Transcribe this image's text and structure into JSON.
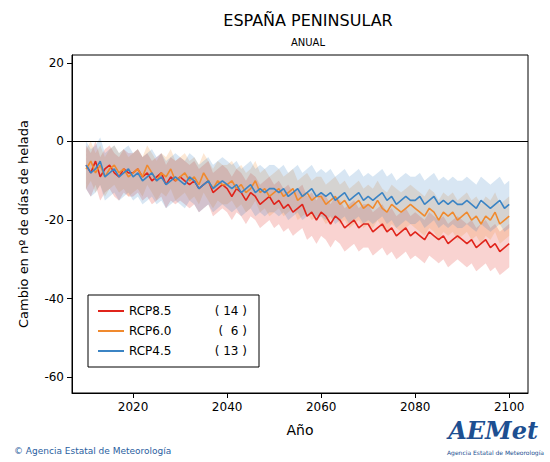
{
  "chart_data": {
    "type": "line",
    "title": "ESPAÑA PENINSULAR",
    "subtitle": "ANUAL",
    "x_label": "Año",
    "y_label": "Cambio en nº de días de helada",
    "x": [
      2010,
      2011,
      2012,
      2013,
      2014,
      2015,
      2016,
      2017,
      2018,
      2019,
      2020,
      2021,
      2022,
      2023,
      2024,
      2025,
      2026,
      2027,
      2028,
      2029,
      2030,
      2031,
      2032,
      2033,
      2034,
      2035,
      2036,
      2037,
      2038,
      2039,
      2040,
      2041,
      2042,
      2043,
      2044,
      2045,
      2046,
      2047,
      2048,
      2049,
      2050,
      2051,
      2052,
      2053,
      2054,
      2055,
      2056,
      2057,
      2058,
      2059,
      2060,
      2061,
      2062,
      2063,
      2064,
      2065,
      2066,
      2067,
      2068,
      2069,
      2070,
      2071,
      2072,
      2073,
      2074,
      2075,
      2076,
      2077,
      2078,
      2079,
      2080,
      2081,
      2082,
      2083,
      2084,
      2085,
      2086,
      2087,
      2088,
      2089,
      2090,
      2091,
      2092,
      2093,
      2094,
      2095,
      2096,
      2097,
      2098,
      2099,
      2100
    ],
    "xlim": [
      2007,
      2104
    ],
    "xticks": [
      2020,
      2040,
      2060,
      2080,
      2100
    ],
    "ylim": [
      -64,
      22
    ],
    "yticks": [
      -60,
      -40,
      -20,
      0,
      20
    ],
    "reference_line": 0,
    "legend": "lower left",
    "series": [
      {
        "name": "RCP8.5",
        "legend_note": "( 14 )",
        "color": "#e0241b",
        "values": [
          -6,
          -8,
          -5,
          -9,
          -7,
          -6,
          -8,
          -9,
          -7,
          -8,
          -8,
          -7,
          -9,
          -8,
          -10,
          -9,
          -8,
          -11,
          -9,
          -10,
          -9,
          -10,
          -11,
          -10,
          -12,
          -11,
          -10,
          -13,
          -12,
          -11,
          -12,
          -14,
          -12,
          -13,
          -15,
          -13,
          -14,
          -16,
          -15,
          -14,
          -16,
          -15,
          -17,
          -16,
          -18,
          -17,
          -16,
          -19,
          -18,
          -20,
          -18,
          -19,
          -21,
          -19,
          -20,
          -22,
          -21,
          -20,
          -22,
          -21,
          -21,
          -23,
          -22,
          -21,
          -23,
          -22,
          -24,
          -23,
          -22,
          -24,
          -23,
          -24,
          -25,
          -23,
          -24,
          -25,
          -24,
          -26,
          -25,
          -24,
          -25,
          -26,
          -25,
          -27,
          -26,
          -25,
          -27,
          -26,
          -28,
          -27,
          -26
        ],
        "lower": [
          -12,
          -14,
          -11,
          -15,
          -13,
          -12,
          -14,
          -15,
          -13,
          -14,
          -14,
          -13,
          -15,
          -14,
          -16,
          -15,
          -14,
          -17,
          -15,
          -16,
          -15,
          -16,
          -17,
          -16,
          -18,
          -17,
          -16,
          -19,
          -18,
          -17,
          -18,
          -20,
          -18,
          -19,
          -21,
          -19,
          -20,
          -22,
          -21,
          -20,
          -22,
          -21,
          -23,
          -22,
          -24,
          -23,
          -22,
          -25,
          -24,
          -26,
          -24,
          -25,
          -27,
          -25,
          -26,
          -28,
          -27,
          -26,
          -28,
          -27,
          -27,
          -29,
          -28,
          -27,
          -29,
          -28,
          -30,
          -29,
          -28,
          -30,
          -29,
          -30,
          -31,
          -29,
          -30,
          -31,
          -30,
          -32,
          -31,
          -30,
          -31,
          -32,
          -31,
          -33,
          -32,
          -31,
          -33,
          -32,
          -34,
          -33,
          -32
        ],
        "upper": [
          -1,
          -3,
          0,
          -4,
          -2,
          -1,
          -3,
          -4,
          -2,
          -3,
          -3,
          -2,
          -4,
          -3,
          -5,
          -4,
          -3,
          -6,
          -4,
          -5,
          -4,
          -5,
          -6,
          -5,
          -7,
          -6,
          -5,
          -8,
          -7,
          -6,
          -7,
          -9,
          -7,
          -8,
          -10,
          -8,
          -9,
          -11,
          -10,
          -9,
          -11,
          -10,
          -12,
          -11,
          -13,
          -12,
          -11,
          -14,
          -13,
          -15,
          -13,
          -14,
          -16,
          -14,
          -15,
          -17,
          -16,
          -15,
          -17,
          -16,
          -16,
          -18,
          -17,
          -16,
          -18,
          -17,
          -19,
          -18,
          -17,
          -19,
          -18,
          -19,
          -20,
          -18,
          -19,
          -20,
          -19,
          -21,
          -20,
          -19,
          -20,
          -21,
          -20,
          -22,
          -21,
          -20,
          -22,
          -21,
          -23,
          -22,
          -21
        ]
      },
      {
        "name": "RCP6.0",
        "legend_note": "(  6 )",
        "color": "#f08a2e",
        "values": [
          -7,
          -5,
          -8,
          -6,
          -9,
          -7,
          -6,
          -8,
          -7,
          -9,
          -8,
          -7,
          -9,
          -6,
          -8,
          -10,
          -8,
          -9,
          -7,
          -10,
          -9,
          -8,
          -10,
          -9,
          -11,
          -8,
          -10,
          -12,
          -10,
          -11,
          -11,
          -10,
          -12,
          -11,
          -13,
          -12,
          -10,
          -13,
          -12,
          -14,
          -13,
          -12,
          -14,
          -13,
          -12,
          -15,
          -14,
          -13,
          -15,
          -14,
          -14,
          -16,
          -15,
          -14,
          -16,
          -15,
          -17,
          -16,
          -15,
          -17,
          -16,
          -17,
          -15,
          -17,
          -18,
          -16,
          -17,
          -18,
          -17,
          -16,
          -17,
          -18,
          -19,
          -17,
          -18,
          -20,
          -18,
          -19,
          -18,
          -20,
          -19,
          -18,
          -20,
          -19,
          -21,
          -19,
          -20,
          -18,
          -21,
          -20,
          -19
        ],
        "lower": [
          -12,
          -10,
          -13,
          -11,
          -14,
          -12,
          -11,
          -13,
          -12,
          -14,
          -13,
          -12,
          -14,
          -11,
          -13,
          -15,
          -13,
          -14,
          -12,
          -15,
          -14,
          -13,
          -15,
          -14,
          -16,
          -13,
          -15,
          -17,
          -15,
          -16,
          -16,
          -15,
          -17,
          -16,
          -18,
          -17,
          -15,
          -18,
          -17,
          -19,
          -18,
          -17,
          -19,
          -18,
          -17,
          -20,
          -19,
          -18,
          -20,
          -19,
          -19,
          -21,
          -20,
          -19,
          -21,
          -20,
          -22,
          -21,
          -20,
          -22,
          -21,
          -22,
          -20,
          -22,
          -23,
          -21,
          -22,
          -23,
          -22,
          -21,
          -22,
          -23,
          -24,
          -22,
          -23,
          -25,
          -23,
          -24,
          -23,
          -25,
          -24,
          -23,
          -25,
          -24,
          -26,
          -24,
          -25,
          -23,
          -26,
          -25,
          -24
        ],
        "upper": [
          -2,
          0,
          -3,
          -1,
          -4,
          -2,
          -1,
          -3,
          -2,
          -4,
          -3,
          -2,
          -4,
          -1,
          -3,
          -5,
          -3,
          -4,
          -2,
          -5,
          -4,
          -3,
          -5,
          -4,
          -6,
          -3,
          -5,
          -7,
          -5,
          -6,
          -6,
          -5,
          -7,
          -6,
          -8,
          -7,
          -5,
          -8,
          -7,
          -9,
          -8,
          -7,
          -9,
          -8,
          -7,
          -10,
          -9,
          -8,
          -10,
          -9,
          -9,
          -11,
          -10,
          -9,
          -11,
          -10,
          -12,
          -11,
          -10,
          -12,
          -11,
          -12,
          -10,
          -12,
          -13,
          -11,
          -12,
          -13,
          -12,
          -11,
          -12,
          -13,
          -14,
          -12,
          -13,
          -15,
          -13,
          -14,
          -13,
          -15,
          -14,
          -13,
          -15,
          -14,
          -16,
          -14,
          -15,
          -13,
          -16,
          -15,
          -14
        ]
      },
      {
        "name": "RCP4.5",
        "legend_note": "( 13 )",
        "color": "#3b84c4",
        "values": [
          -6,
          -8,
          -7,
          -5,
          -9,
          -8,
          -7,
          -9,
          -8,
          -7,
          -9,
          -8,
          -10,
          -9,
          -8,
          -10,
          -9,
          -11,
          -10,
          -9,
          -10,
          -11,
          -9,
          -10,
          -12,
          -11,
          -10,
          -12,
          -11,
          -10,
          -11,
          -12,
          -11,
          -13,
          -12,
          -11,
          -13,
          -12,
          -13,
          -12,
          -12,
          -13,
          -12,
          -14,
          -13,
          -12,
          -14,
          -13,
          -12,
          -14,
          -13,
          -14,
          -13,
          -15,
          -14,
          -13,
          -15,
          -14,
          -13,
          -15,
          -14,
          -15,
          -14,
          -13,
          -15,
          -14,
          -16,
          -15,
          -14,
          -15,
          -15,
          -14,
          -16,
          -15,
          -14,
          -16,
          -15,
          -16,
          -15,
          -16,
          -16,
          -15,
          -16,
          -17,
          -15,
          -16,
          -17,
          -16,
          -15,
          -17,
          -16
        ],
        "lower": [
          -12,
          -14,
          -13,
          -11,
          -15,
          -14,
          -13,
          -15,
          -14,
          -13,
          -15,
          -14,
          -16,
          -15,
          -14,
          -16,
          -15,
          -17,
          -16,
          -15,
          -16,
          -17,
          -15,
          -16,
          -18,
          -17,
          -16,
          -18,
          -17,
          -16,
          -17,
          -18,
          -17,
          -19,
          -18,
          -17,
          -19,
          -18,
          -19,
          -18,
          -18,
          -19,
          -18,
          -20,
          -19,
          -18,
          -20,
          -19,
          -18,
          -20,
          -19,
          -20,
          -19,
          -21,
          -20,
          -19,
          -21,
          -20,
          -19,
          -21,
          -20,
          -21,
          -20,
          -19,
          -21,
          -20,
          -22,
          -21,
          -20,
          -21,
          -21,
          -20,
          -22,
          -21,
          -20,
          -22,
          -21,
          -22,
          -21,
          -22,
          -22,
          -21,
          -22,
          -23,
          -21,
          -22,
          -23,
          -22,
          -21,
          -23,
          -22
        ],
        "upper": [
          0,
          -2,
          -1,
          1,
          -3,
          -2,
          -1,
          -3,
          -2,
          -1,
          -3,
          -2,
          -4,
          -3,
          -2,
          -4,
          -3,
          -5,
          -4,
          -3,
          -4,
          -5,
          -3,
          -4,
          -6,
          -5,
          -4,
          -6,
          -5,
          -4,
          -5,
          -6,
          -5,
          -7,
          -6,
          -5,
          -7,
          -6,
          -7,
          -6,
          -6,
          -7,
          -6,
          -8,
          -7,
          -6,
          -8,
          -7,
          -6,
          -8,
          -7,
          -8,
          -7,
          -9,
          -8,
          -7,
          -9,
          -8,
          -7,
          -9,
          -8,
          -9,
          -8,
          -7,
          -9,
          -8,
          -10,
          -9,
          -8,
          -9,
          -9,
          -8,
          -10,
          -9,
          -8,
          -10,
          -9,
          -10,
          -9,
          -10,
          -10,
          -9,
          -10,
          -11,
          -9,
          -10,
          -11,
          -10,
          -9,
          -11,
          -10
        ]
      }
    ],
    "footer": "© Agencia Estatal de Meteorología",
    "logo": {
      "name": "AEMet",
      "subtitle": "Agencia Estatal de Meteorología"
    }
  }
}
